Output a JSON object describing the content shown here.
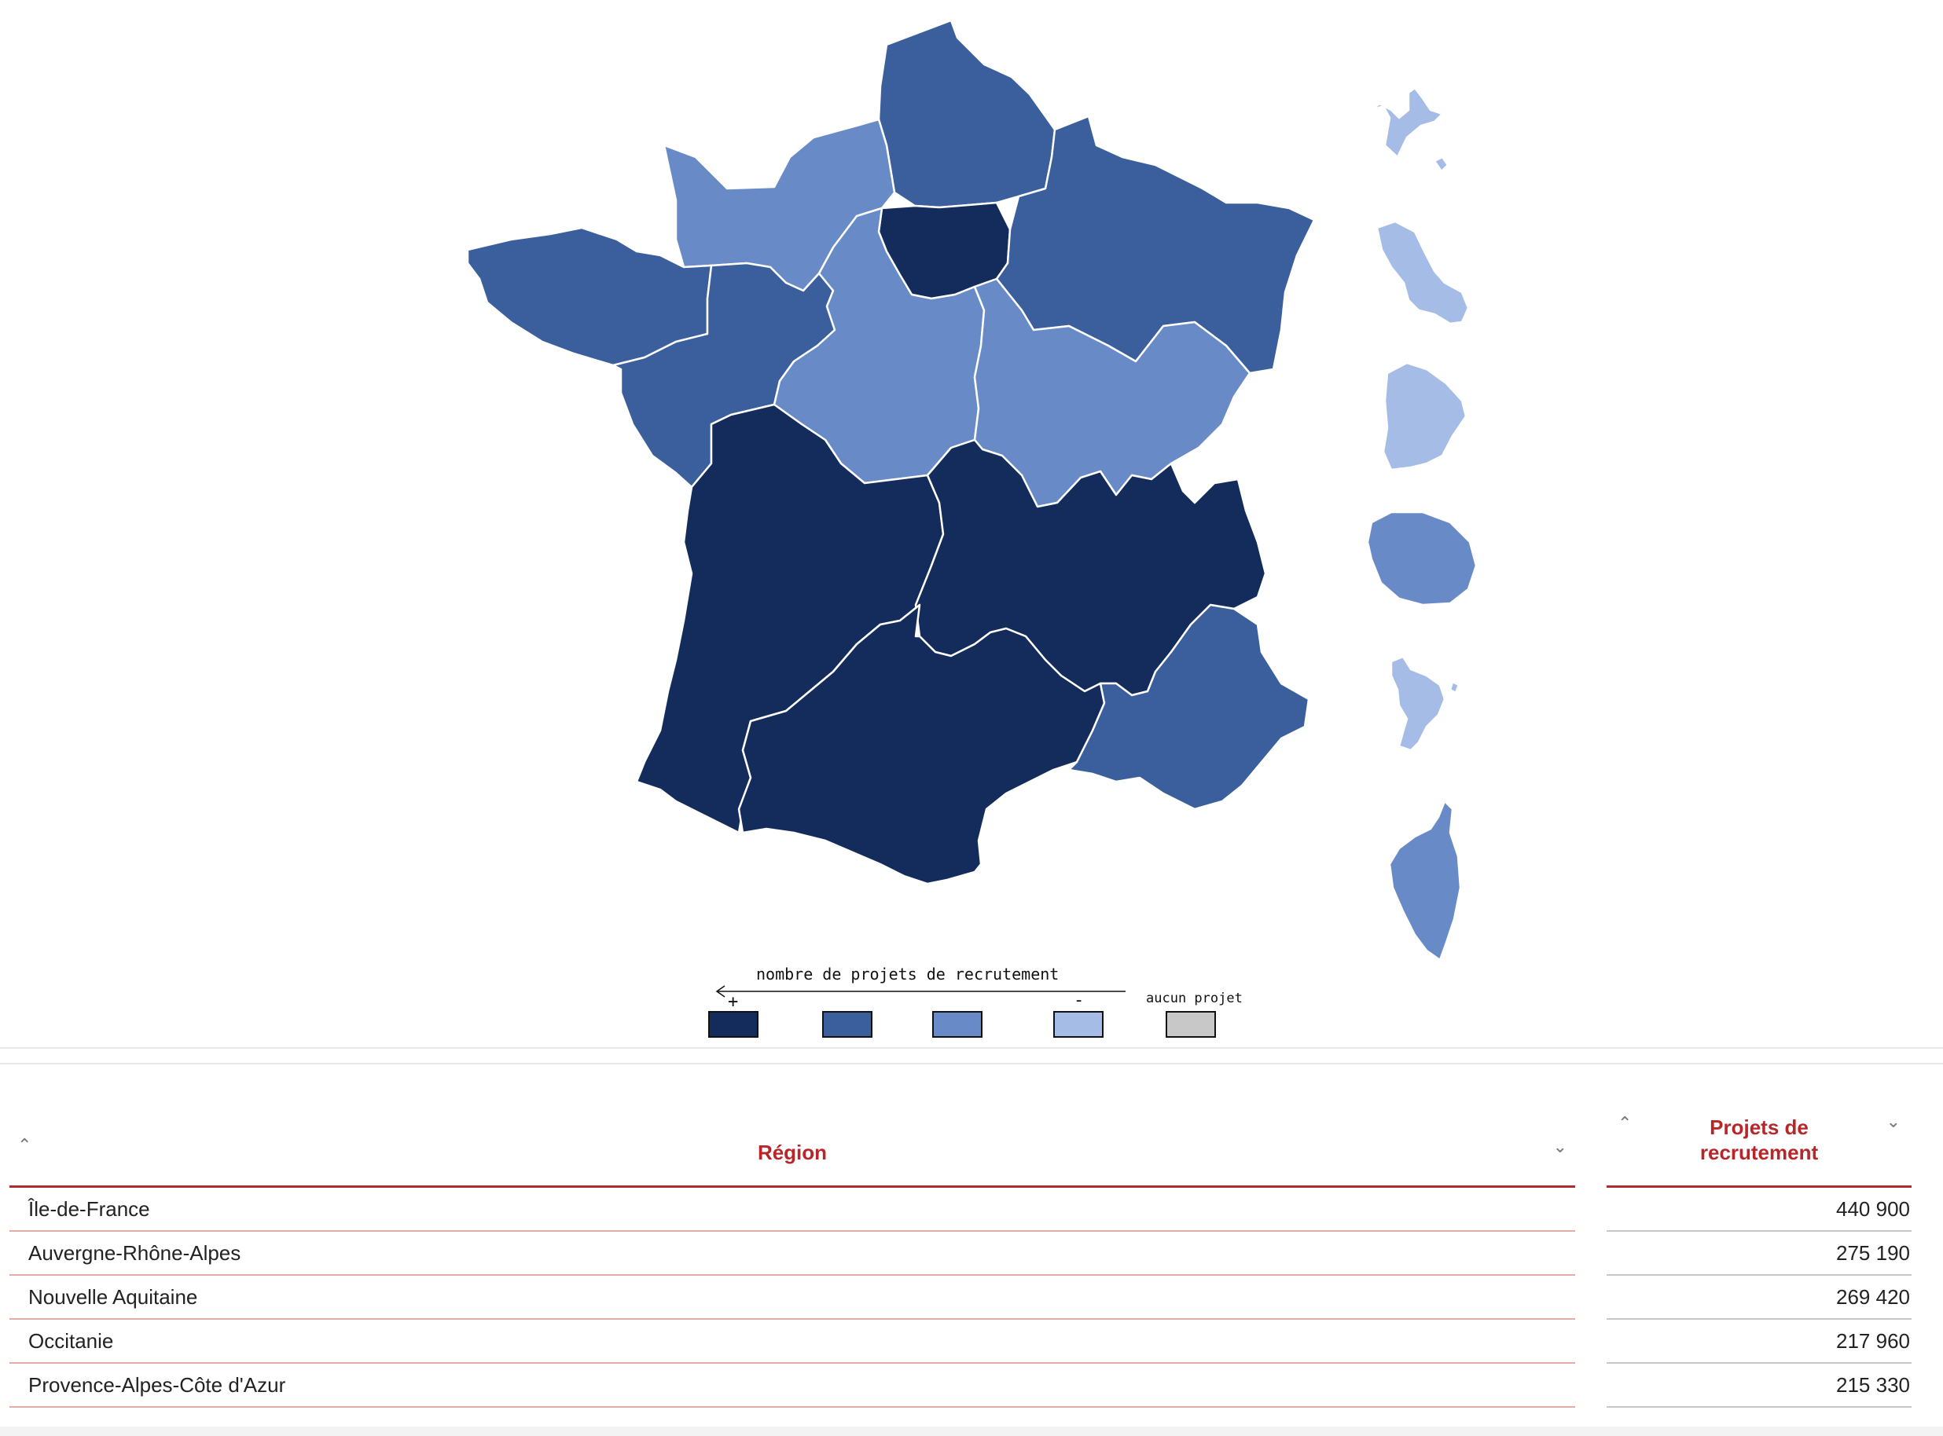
{
  "map": {
    "legend": {
      "title": "nombre de projets de recrutement",
      "more_sign": "+",
      "less_sign": "-",
      "none_label": "aucun projet",
      "classes": [
        "#132c5c",
        "#3a5f9c",
        "#688bc8",
        "#a5bde6",
        "#c8c8c8"
      ]
    },
    "regions": [
      {
        "name": "Hauts-de-France",
        "color": "#3a5f9c"
      },
      {
        "name": "Normandie",
        "color": "#688bc8"
      },
      {
        "name": "Île-de-France",
        "color": "#132c5c"
      },
      {
        "name": "Grand Est",
        "color": "#3a5f9c"
      },
      {
        "name": "Bretagne",
        "color": "#3a5f9c"
      },
      {
        "name": "Pays de la Loire",
        "color": "#3a5f9c"
      },
      {
        "name": "Centre-Val de Loire",
        "color": "#688bc8"
      },
      {
        "name": "Bourgogne-Franche-Comté",
        "color": "#688bc8"
      },
      {
        "name": "Nouvelle Aquitaine",
        "color": "#132c5c"
      },
      {
        "name": "Auvergne-Rhône-Alpes",
        "color": "#132c5c"
      },
      {
        "name": "Occitanie",
        "color": "#132c5c"
      },
      {
        "name": "Provence-Alpes-Côte d'Azur",
        "color": "#3a5f9c"
      },
      {
        "name": "Corse",
        "color": "#688bc8"
      },
      {
        "name": "Guadeloupe",
        "color": "#a5bde6"
      },
      {
        "name": "Martinique",
        "color": "#a5bde6"
      },
      {
        "name": "Guyane",
        "color": "#a5bde6"
      },
      {
        "name": "La Réunion",
        "color": "#688bc8"
      },
      {
        "name": "Mayotte",
        "color": "#a5bde6"
      }
    ]
  },
  "table": {
    "headers": {
      "region": "Région",
      "projets_line1": "Projets de",
      "projets_line2": "recrutement"
    },
    "sort_up_icon": "chevron-up-icon",
    "sort_down_icon": "chevron-down-icon",
    "rows": [
      {
        "region": "Île-de-France",
        "projets": "440 900"
      },
      {
        "region": "Auvergne-Rhône-Alpes",
        "projets": "275 190"
      },
      {
        "region": "Nouvelle Aquitaine",
        "projets": "269 420"
      },
      {
        "region": "Occitanie",
        "projets": "217 960"
      },
      {
        "region": "Provence-Alpes-Côte d'Azur",
        "projets": "215 330"
      }
    ]
  }
}
